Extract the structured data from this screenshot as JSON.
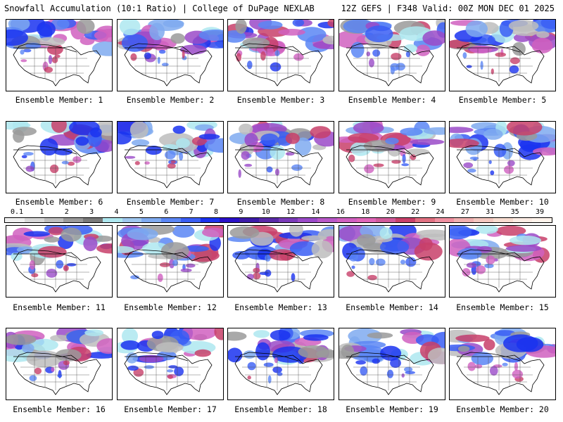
{
  "header": {
    "title": "Snowfall Accumulation (10:1 Ratio) | College of DuPage NEXLAB",
    "run_info": "12Z GEFS | F348 Valid: 00Z MON DEC 01 2025"
  },
  "members": [
    "Ensemble Member: 1",
    "Ensemble Member: 2",
    "Ensemble Member: 3",
    "Ensemble Member: 4",
    "Ensemble Member: 5",
    "Ensemble Member: 6",
    "Ensemble Member: 7",
    "Ensemble Member: 8",
    "Ensemble Member: 9",
    "Ensemble Member: 10",
    "Ensemble Member: 11",
    "Ensemble Member: 12",
    "Ensemble Member: 13",
    "Ensemble Member: 14",
    "Ensemble Member: 15",
    "Ensemble Member: 16",
    "Ensemble Member: 17",
    "Ensemble Member: 18",
    "Ensemble Member: 19",
    "Ensemble Member: 20"
  ],
  "colorbar": {
    "ticks": [
      "0.1",
      "1",
      "2",
      "3",
      "4",
      "5",
      "6",
      "7",
      "8",
      "9",
      "10",
      "12",
      "14",
      "16",
      "18",
      "20",
      "22",
      "24",
      "27",
      "31",
      "35",
      "39"
    ],
    "colors": [
      "#f0f0f0",
      "#d8d8d8",
      "#bdbdbd",
      "#9a9a9a",
      "#7a7a7a",
      "#aee8f0",
      "#9fc7ef",
      "#7faaf0",
      "#5b86f5",
      "#3a5ef5",
      "#1a32f0",
      "#2a10c8",
      "#3c1aa8",
      "#5a2aa8",
      "#7a3ab8",
      "#9a4ac8",
      "#b858c8",
      "#d060c0",
      "#e066b8",
      "#d05a9a",
      "#c8406a",
      "#e07080",
      "#f090a0",
      "#f0b0b0",
      "#f4c8c0",
      "#f8dcd0",
      "#fcece4",
      "#fff4ec"
    ]
  }
}
